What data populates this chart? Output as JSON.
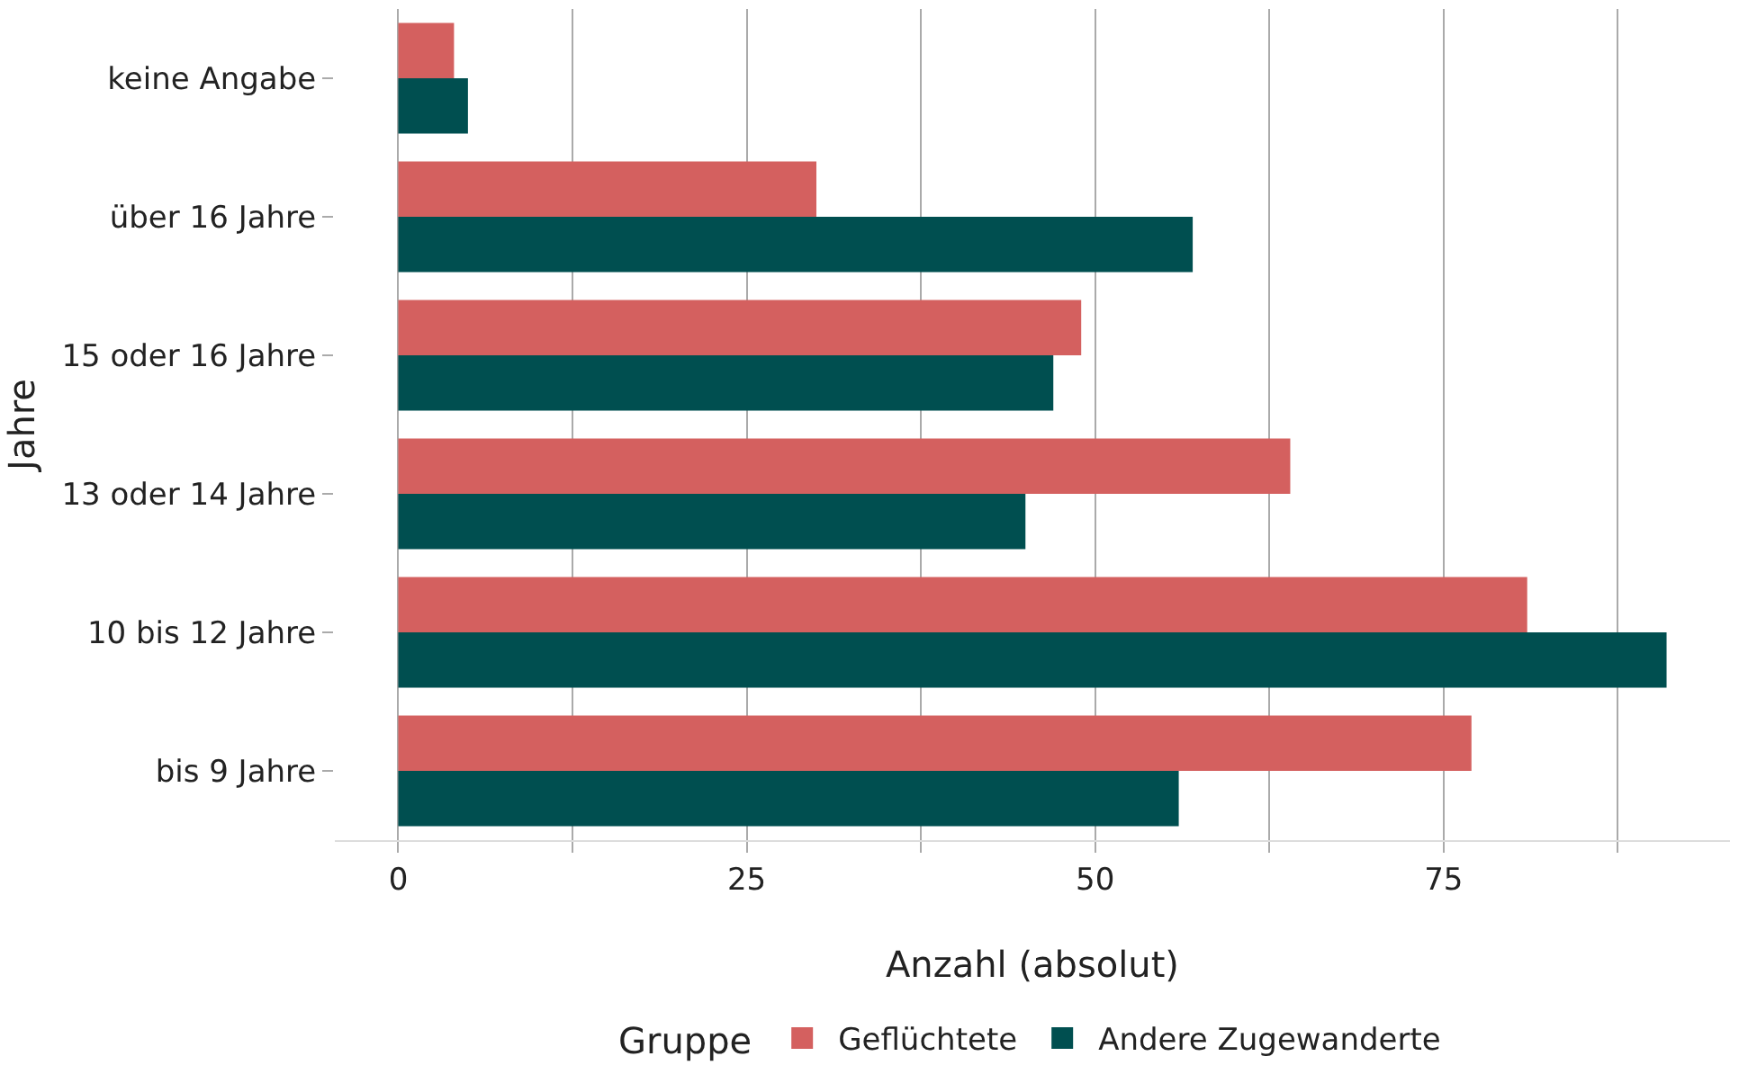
{
  "chart_data": {
    "type": "bar",
    "orientation": "horizontal",
    "xlabel": "Anzahl (absolut)",
    "ylabel": "Jahre",
    "legend_title": "Gruppe",
    "legend": "bottom",
    "grid": "x",
    "categories": [
      "keine Angabe",
      "über 16 Jahre",
      "15 oder 16 Jahre",
      "13 oder 14 Jahre",
      "10 bis 12 Jahre",
      "bis 9 Jahre"
    ],
    "series": [
      {
        "name": "Geflüchtete",
        "color": "#d4605f",
        "values": [
          4,
          30,
          49,
          64,
          81,
          77
        ]
      },
      {
        "name": "Andere Zugewanderte",
        "color": "#004f50",
        "values": [
          5,
          57,
          47,
          45,
          91,
          56
        ]
      }
    ],
    "xlim": [
      -4.55,
      95.55
    ],
    "xticks": [
      0,
      {
        "value": 12.5,
        "label": null
      },
      25,
      {
        "value": 37.5,
        "label": null
      },
      50,
      {
        "value": 62.5,
        "label": null
      },
      75,
      {
        "value": 87.5,
        "label": null
      }
    ]
  }
}
